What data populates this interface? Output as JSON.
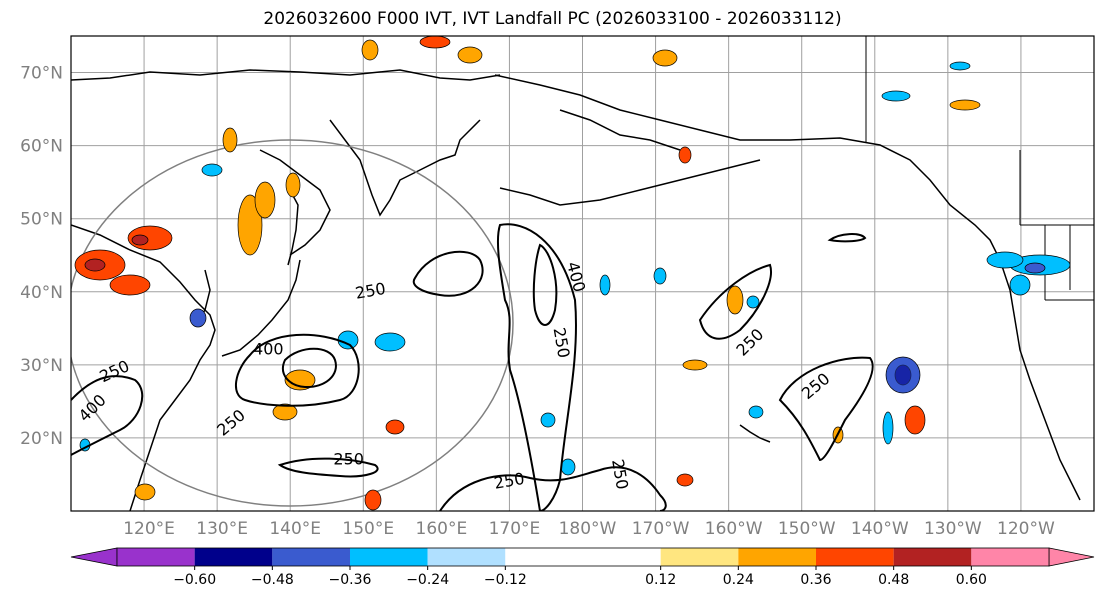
{
  "title": "2026032600 F000 IVT, IVT Landfall PC (2026033100 - 2026033112)",
  "map": {
    "lat_labels": [
      "70°N",
      "60°N",
      "50°N",
      "40°N",
      "30°N",
      "20°N"
    ],
    "lat_values": [
      70,
      60,
      50,
      40,
      30,
      20
    ],
    "lon_labels": [
      "120°E",
      "130°E",
      "140°E",
      "150°E",
      "160°E",
      "170°E",
      "180°W",
      "170°W",
      "160°W",
      "150°W",
      "140°W",
      "130°W",
      "120°W"
    ],
    "lat_range": [
      10,
      75
    ],
    "lon_range_deg_east": [
      110,
      250
    ],
    "grid": true,
    "contour_levels": [
      250,
      400
    ],
    "contour_labels": [
      {
        "text": "250",
        "lon": 151,
        "lat": 40,
        "rot": -10
      },
      {
        "text": "400",
        "lon": 179,
        "lat": 42,
        "rot": 75
      },
      {
        "text": "250",
        "lon": 177,
        "lat": 33,
        "rot": 80
      },
      {
        "text": "250",
        "lon": 132,
        "lat": 22,
        "rot": -40
      },
      {
        "text": "400",
        "lon": 137,
        "lat": 32,
        "rot": 0
      },
      {
        "text": "250",
        "lon": 116,
        "lat": 29,
        "rot": -25
      },
      {
        "text": "400",
        "lon": 113,
        "lat": 24,
        "rot": -45
      },
      {
        "text": "250",
        "lon": 148,
        "lat": 17,
        "rot": 0
      },
      {
        "text": "250",
        "lon": 170,
        "lat": 14,
        "rot": -10
      },
      {
        "text": "250",
        "lon": 185,
        "lat": 15,
        "rot": 80
      },
      {
        "text": "250",
        "lon": 203,
        "lat": 33,
        "rot": -45
      },
      {
        "text": "250",
        "lon": 212,
        "lat": 27,
        "rot": -40
      }
    ]
  },
  "colorbar": {
    "colors": [
      "#9932CC",
      "#00008B",
      "#3A5BCF",
      "#00BFFF",
      "#B0E0FF",
      "#FFFFFF",
      "#FFE680",
      "#FFA500",
      "#FF4500",
      "#B22222",
      "#FF85A8"
    ],
    "ticks": [
      "−0.60",
      "−0.48",
      "−0.36",
      "−0.24",
      "−0.12",
      "0.12",
      "0.24",
      "0.36",
      "0.48",
      "0.60"
    ],
    "tick_values": [
      -0.6,
      -0.48,
      -0.36,
      -0.24,
      -0.12,
      0.12,
      0.24,
      0.36,
      0.48,
      0.6
    ]
  },
  "chart_data": {
    "type": "heatmap",
    "title": "2026032600 F000 IVT, IVT Landfall PC (2026033100 - 2026033112)",
    "variables": [
      "IVT contours (250, 400)",
      "IVT Landfall PC (shaded)"
    ],
    "colorbar_range": [
      -0.6,
      0.6
    ],
    "lat_range": [
      10,
      75
    ],
    "lon_range": [
      "110°E",
      "110°W"
    ]
  }
}
